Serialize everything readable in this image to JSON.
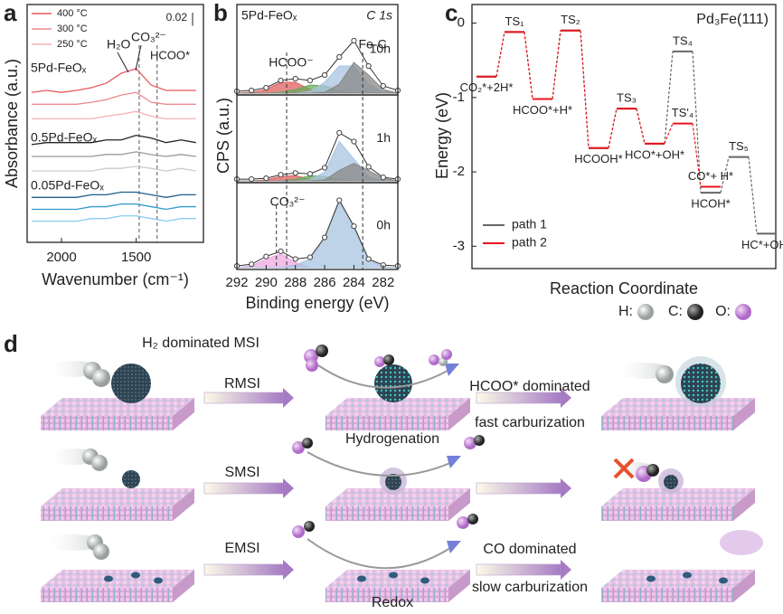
{
  "chart_data": [
    {
      "type": "line",
      "label": "a",
      "xlabel": "Wavenumber (cm⁻¹)",
      "ylabel": "Absorbance (a.u.)",
      "xlim": [
        2230,
        1050
      ],
      "xticks": [
        2000,
        1500
      ],
      "ylim": [
        0,
        0.36
      ],
      "legend": "top-left",
      "scale_bar": 0.02,
      "ref_lines": [
        1480,
        1360
      ],
      "x": [
        2200,
        2100,
        2000,
        1900,
        1800,
        1700,
        1600,
        1500,
        1400,
        1300,
        1200,
        1100
      ],
      "series": [
        {
          "name": "400 °C",
          "color": "#e8585c",
          "values": [
            0.227,
            0.23,
            0.227,
            0.23,
            0.234,
            0.241,
            0.256,
            0.263,
            0.238,
            0.23,
            0.23,
            0.23
          ]
        },
        {
          "name": "300 °C",
          "color": "#ec8a8e",
          "values": [
            0.209,
            0.209,
            0.209,
            0.209,
            0.212,
            0.216,
            0.223,
            0.227,
            0.212,
            0.209,
            0.209,
            0.209
          ]
        },
        {
          "name": "250 °C",
          "color": "#f2b2b4",
          "values": [
            0.187,
            0.187,
            0.187,
            0.187,
            0.187,
            0.191,
            0.194,
            0.198,
            0.191,
            0.187,
            0.187,
            0.187
          ]
        },
        {
          "color": "#222222",
          "values": [
            0.148,
            0.151,
            0.151,
            0.151,
            0.151,
            0.155,
            0.155,
            0.162,
            0.158,
            0.151,
            0.155,
            0.151
          ]
        },
        {
          "color": "#999999",
          "values": [
            0.13,
            0.13,
            0.13,
            0.13,
            0.13,
            0.133,
            0.133,
            0.137,
            0.133,
            0.13,
            0.133,
            0.13
          ]
        },
        {
          "color": "#cccccc",
          "values": [
            0.108,
            0.108,
            0.108,
            0.108,
            0.108,
            0.112,
            0.112,
            0.115,
            0.112,
            0.108,
            0.112,
            0.108
          ]
        },
        {
          "color": "#1f5f8b",
          "values": [
            0.068,
            0.068,
            0.068,
            0.068,
            0.072,
            0.072,
            0.076,
            0.076,
            0.072,
            0.068,
            0.072,
            0.072
          ]
        },
        {
          "color": "#3399cc",
          "values": [
            0.05,
            0.05,
            0.05,
            0.05,
            0.054,
            0.054,
            0.058,
            0.058,
            0.054,
            0.05,
            0.054,
            0.054
          ]
        },
        {
          "color": "#88ccee",
          "values": [
            0.032,
            0.032,
            0.032,
            0.032,
            0.036,
            0.036,
            0.04,
            0.04,
            0.036,
            0.032,
            0.036,
            0.036
          ]
        }
      ],
      "annotations": [
        "5Pd-FeOₓ",
        "0.5Pd-FeOₓ",
        "0.05Pd-FeOₓ",
        "H₂O",
        "CO₃²⁻",
        "HCOO*"
      ]
    },
    {
      "type": "xps",
      "label": "b",
      "title": "5Pd-FeOₓ",
      "subtitle": "C 1s",
      "xlabel": "Binding energy (eV)",
      "ylabel": "CPS (a.u.)",
      "xlim": [
        292,
        281
      ],
      "xticks": [
        292,
        290,
        288,
        286,
        284,
        282
      ],
      "ylim": [
        0,
        9
      ],
      "ref_lines": [
        288.6,
        283.4
      ],
      "x": [
        292,
        291,
        290,
        289,
        288,
        287,
        286,
        285,
        284,
        283,
        282,
        281
      ],
      "subplots": [
        {
          "label": "10h",
          "annotations": [
            "HCOO⁻",
            "Fe-C"
          ],
          "raw": [
            0.2,
            0.3,
            0.6,
            1.4,
            1.6,
            1.4,
            2.0,
            4.0,
            5.8,
            3.0,
            0.8,
            0.3
          ],
          "components": [
            {
              "color": "#e06060",
              "values": [
                0,
                0.1,
                0.4,
                1.2,
                1.2,
                0.4,
                0.1,
                0,
                0,
                0,
                0,
                0
              ]
            },
            {
              "color": "#6aaa5a",
              "values": [
                0,
                0,
                0,
                0.1,
                0.4,
                0.9,
                0.8,
                0.3,
                0,
                0,
                0,
                0
              ]
            },
            {
              "color": "#a8c4e0",
              "values": [
                0,
                0,
                0,
                0,
                0,
                0.2,
                1.2,
                3.0,
                3.0,
                1.0,
                0.1,
                0
              ]
            },
            {
              "color": "#888888",
              "values": [
                0,
                0,
                0,
                0,
                0,
                0,
                0.1,
                1.0,
                3.4,
                2.0,
                0.4,
                0
              ]
            }
          ]
        },
        {
          "label": "1h",
          "raw": [
            0.2,
            0.2,
            0.3,
            0.7,
            0.9,
            0.8,
            1.5,
            5.5,
            4.5,
            1.6,
            0.4,
            0.2
          ],
          "components": [
            {
              "color": "#e06060",
              "values": [
                0,
                0,
                0.1,
                0.5,
                0.6,
                0.2,
                0,
                0,
                0,
                0,
                0,
                0
              ]
            },
            {
              "color": "#6aaa5a",
              "values": [
                0,
                0,
                0,
                0,
                0.2,
                0.6,
                0.5,
                0.2,
                0,
                0,
                0,
                0
              ]
            },
            {
              "color": "#a8c4e0",
              "values": [
                0,
                0,
                0,
                0,
                0,
                0.1,
                1.0,
                4.5,
                2.5,
                0.5,
                0,
                0
              ]
            },
            {
              "color": "#888888",
              "values": [
                0,
                0,
                0,
                0,
                0,
                0,
                0.1,
                1.2,
                2.0,
                1.2,
                0.3,
                0
              ]
            }
          ]
        },
        {
          "label": "0h",
          "annotations": [
            "CO₃²⁻"
          ],
          "ref_lines": [
            289.3
          ],
          "raw": [
            0.2,
            0.4,
            1.3,
            1.9,
            1.0,
            1.2,
            3.5,
            7.8,
            4.8,
            1.0,
            0.3,
            0.2
          ],
          "components": [
            {
              "color": "#f0a8e0",
              "values": [
                0,
                0.2,
                1.0,
                1.6,
                0.6,
                0,
                0,
                0,
                0,
                0,
                0,
                0
              ]
            },
            {
              "color": "#a8c4e0",
              "values": [
                0,
                0,
                0,
                0,
                0.3,
                1.0,
                3.5,
                7.6,
                4.6,
                0.9,
                0.1,
                0
              ]
            }
          ]
        }
      ]
    },
    {
      "type": "energy_profile",
      "label": "c",
      "title": "Pd₃Fe(111)",
      "xlabel": "Reaction Coordinate",
      "ylabel": "Energy (eV)",
      "ylim": [
        -3.3,
        0.25
      ],
      "yticks": [
        -3,
        -2,
        -1,
        0
      ],
      "legend": "bottom-left",
      "series": [
        {
          "name": "path 1",
          "color": "#666666",
          "values": [
            -0.72,
            -0.12,
            -1.02,
            -0.1,
            -1.68,
            -1.15,
            -1.62,
            -0.38,
            -2.28,
            -1.8,
            -2.83
          ],
          "labels": [
            "CO₂*+2H*",
            null,
            "HCOO*+H*",
            null,
            "HCOOH*",
            null,
            "HCO*+OH*",
            "TS₄",
            "HCOH*",
            "TS₅",
            "HC*+OH*"
          ]
        },
        {
          "name": "path 2",
          "color": "#e8131b",
          "values": [
            -0.72,
            -0.12,
            -1.02,
            -0.1,
            -1.68,
            -1.15,
            -1.62,
            -1.35,
            -2.2,
            null,
            null
          ],
          "labels": [
            null,
            "TS₁",
            null,
            "TS₂",
            null,
            "TS₃",
            null,
            "TS'₄",
            "CO*+ H*",
            null,
            null
          ]
        }
      ]
    }
  ],
  "diagram": {
    "label": "d",
    "title": "H₂ dominated MSI",
    "legend": [
      "H:",
      "C:",
      "O:"
    ],
    "rows": [
      "RMSI",
      "SMSI",
      "EMSI"
    ],
    "process": [
      "Hydrogenation",
      "Redox"
    ],
    "outcomes": [
      {
        "color": "#e8131b",
        "lines": [
          "HCOO* dominated",
          "fast carburization"
        ]
      },
      {
        "color": "#1a78c2",
        "lines": [
          "CO dominated",
          "slow carburization"
        ]
      }
    ]
  }
}
